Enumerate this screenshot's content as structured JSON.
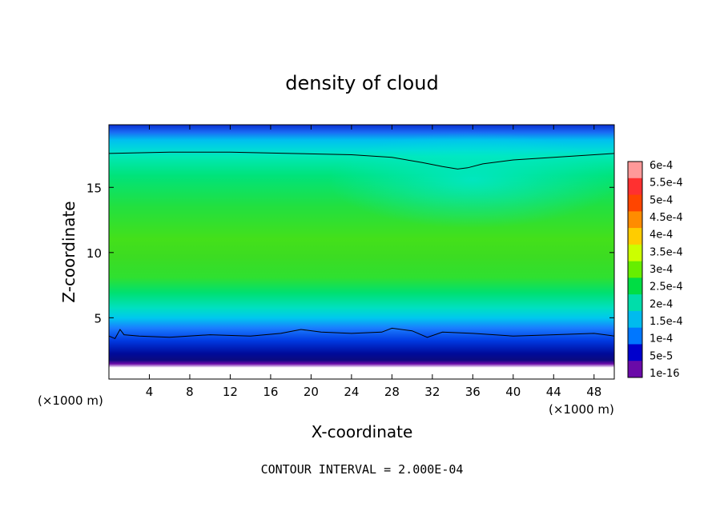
{
  "chart_data": {
    "type": "heatmap",
    "title": "density of cloud",
    "xlabel": "X-coordinate",
    "ylabel": "Z-coordinate",
    "x_unit": "(×1000 m)",
    "y_unit": "(×1000 m)",
    "xlim": [
      0,
      50
    ],
    "ylim": [
      0.3,
      19.8
    ],
    "x_ticks": [
      4,
      8,
      12,
      16,
      20,
      24,
      28,
      32,
      36,
      40,
      44,
      48
    ],
    "y_ticks": [
      5,
      10,
      15
    ],
    "footnote": "CONTOUR INTERVAL = 2.000E-04",
    "colorbar": {
      "labels": [
        "6e-4",
        "5.5e-4",
        "5e-4",
        "4.5e-4",
        "4e-4",
        "3.5e-4",
        "3e-4",
        "2.5e-4",
        "2e-4",
        "1.5e-4",
        "1e-4",
        "5e-5",
        "1e-16"
      ],
      "colors": [
        "#ff9999",
        "#ff3030",
        "#ff4500",
        "#ff8c00",
        "#ffcc00",
        "#ccff00",
        "#66ee00",
        "#00dd44",
        "#00ddaa",
        "#00bbee",
        "#0077ff",
        "#0000cc",
        "#6a0aa8"
      ]
    },
    "contour_line_200": {
      "lower_boundary_z_km": [
        [
          0,
          3.6
        ],
        [
          0.6,
          3.4
        ],
        [
          1.1,
          4.1
        ],
        [
          1.5,
          3.7
        ],
        [
          3,
          3.6
        ],
        [
          6,
          3.5
        ],
        [
          10,
          3.7
        ],
        [
          14,
          3.6
        ],
        [
          17,
          3.8
        ],
        [
          19,
          4.1
        ],
        [
          21,
          3.9
        ],
        [
          24,
          3.8
        ],
        [
          27,
          3.9
        ],
        [
          28,
          4.2
        ],
        [
          30,
          4.0
        ],
        [
          31.5,
          3.5
        ],
        [
          33,
          3.9
        ],
        [
          36,
          3.8
        ],
        [
          40,
          3.6
        ],
        [
          44,
          3.7
        ],
        [
          48,
          3.8
        ],
        [
          50,
          3.6
        ]
      ],
      "upper_boundary_z_km": [
        [
          0,
          17.6
        ],
        [
          6,
          17.7
        ],
        [
          12,
          17.7
        ],
        [
          18,
          17.6
        ],
        [
          24,
          17.5
        ],
        [
          28,
          17.3
        ],
        [
          31,
          16.9
        ],
        [
          33,
          16.6
        ],
        [
          34.5,
          16.4
        ],
        [
          35.5,
          16.5
        ],
        [
          37,
          16.8
        ],
        [
          40,
          17.1
        ],
        [
          44,
          17.3
        ],
        [
          48,
          17.5
        ],
        [
          50,
          17.6
        ]
      ]
    }
  }
}
